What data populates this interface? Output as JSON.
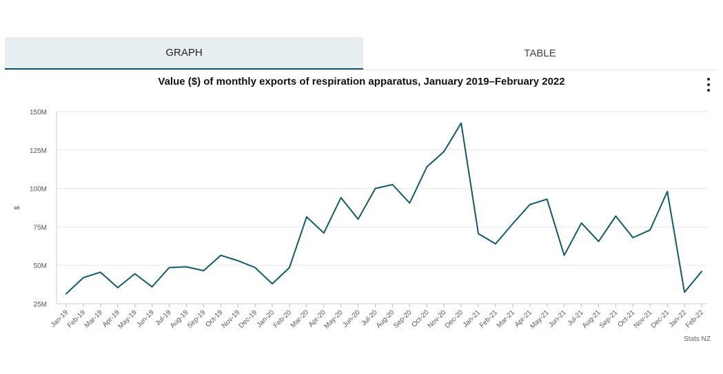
{
  "tabs": [
    {
      "label": "GRAPH",
      "active": true
    },
    {
      "label": "TABLE",
      "active": false
    }
  ],
  "menu_icon": "kebab-menu-icon",
  "credit": "Stats NZ",
  "chart_data": {
    "type": "line",
    "title": "Value ($) of monthly exports of respiration apparatus, January 2019–February 2022",
    "ylabel": "$",
    "xlabel": "",
    "ylim": [
      25000000,
      150000000
    ],
    "yticks": [
      {
        "value": 25000000,
        "label": "25M"
      },
      {
        "value": 50000000,
        "label": "50M"
      },
      {
        "value": 75000000,
        "label": "75M"
      },
      {
        "value": 100000000,
        "label": "100M"
      },
      {
        "value": 125000000,
        "label": "125M"
      },
      {
        "value": 150000000,
        "label": "150M"
      }
    ],
    "grid": true,
    "color": "#0e5a6b",
    "categories": [
      "Jan-19",
      "Feb-19",
      "Mar-19",
      "Apr-19",
      "May-19",
      "Jun-19",
      "Jul-19",
      "Aug-19",
      "Sep-19",
      "Oct-19",
      "Nov-19",
      "Dec-19",
      "Jan-20",
      "Feb-20",
      "Mar-20",
      "Apr-20",
      "May-20",
      "Jun-20",
      "Jul-20",
      "Aug-20",
      "Sep-20",
      "Oct-20",
      "Nov-20",
      "Dec-20",
      "Jan-21",
      "Feb-21",
      "Mar-21",
      "Apr-21",
      "May-21",
      "Jun-21",
      "Jul-21",
      "Aug-21",
      "Sep-21",
      "Oct-21",
      "Nov-21",
      "Dec-21",
      "Jan-22",
      "Feb-22"
    ],
    "values": [
      31500000,
      42000000,
      45500000,
      35500000,
      44500000,
      36000000,
      48500000,
      49000000,
      46500000,
      56500000,
      53000000,
      48500000,
      38000000,
      48500000,
      81500000,
      71000000,
      94000000,
      80000000,
      100000000,
      102500000,
      90500000,
      114000000,
      124000000,
      142500000,
      70500000,
      64000000,
      77000000,
      89500000,
      93000000,
      56500000,
      77500000,
      65500000,
      82000000,
      68000000,
      73000000,
      98000000,
      32500000,
      46000000
    ]
  }
}
